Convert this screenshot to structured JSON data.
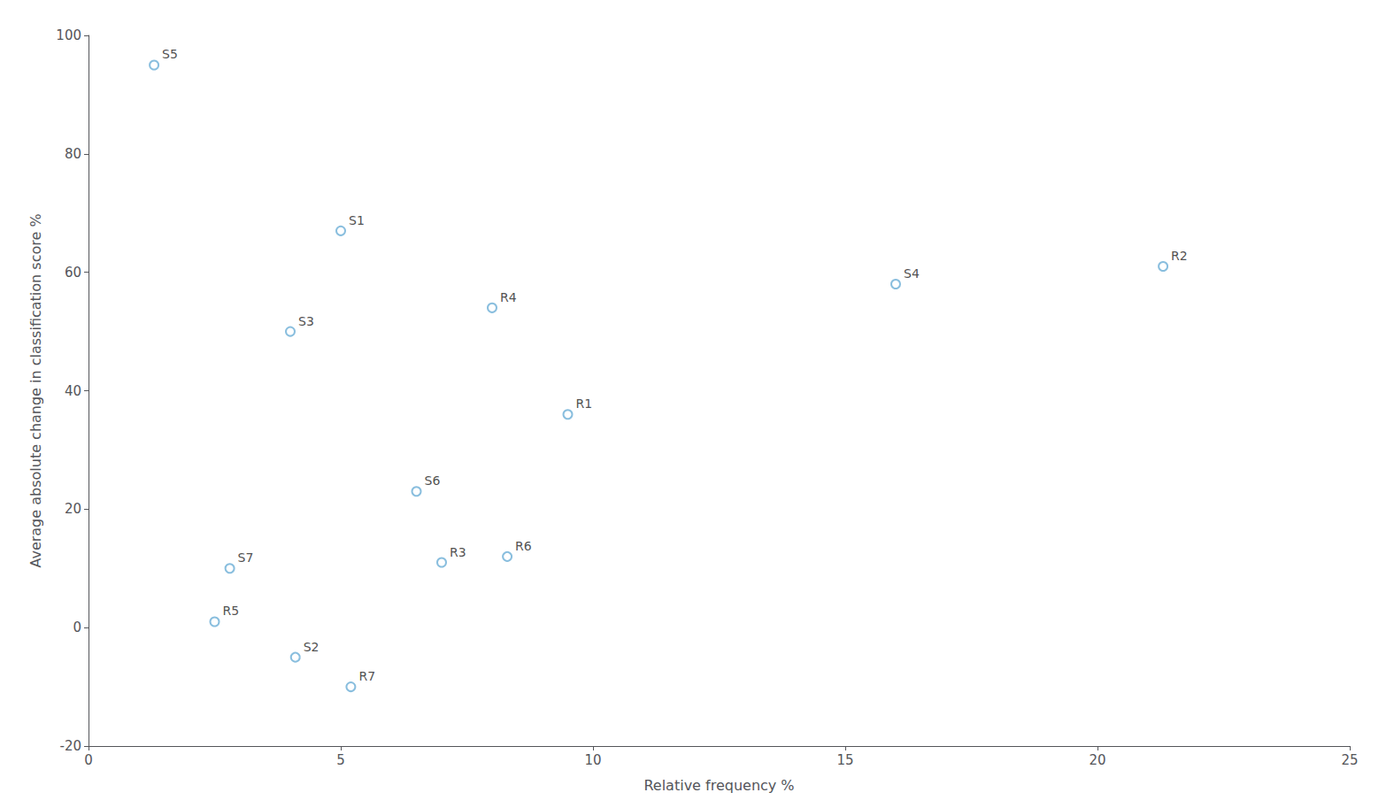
{
  "chart_data": {
    "type": "scatter",
    "xlabel": "Relative frequency %",
    "ylabel": "Average absolute change in classification score %",
    "x": [
      1.3,
      5.0,
      4.0,
      8.0,
      9.5,
      6.5,
      7.0,
      8.3,
      2.8,
      2.5,
      4.1,
      5.2,
      16.0,
      21.3
    ],
    "values": [
      95,
      67,
      50,
      54,
      36,
      23,
      11,
      12,
      10,
      1,
      -5,
      -10,
      58,
      61
    ],
    "annotations": [
      "S5",
      "S1",
      "S3",
      "R4",
      "R1",
      "S6",
      "R3",
      "R6",
      "S7",
      "R5",
      "S2",
      "R7",
      "S4",
      "R2"
    ],
    "color": "#6baed6",
    "xlim": [
      0,
      25
    ],
    "ylim": [
      -20,
      100
    ],
    "xticks": [
      0,
      5,
      10,
      15,
      20,
      25
    ],
    "yticks": [
      -20,
      0,
      20,
      40,
      60,
      80,
      100
    ],
    "grid": false
  }
}
